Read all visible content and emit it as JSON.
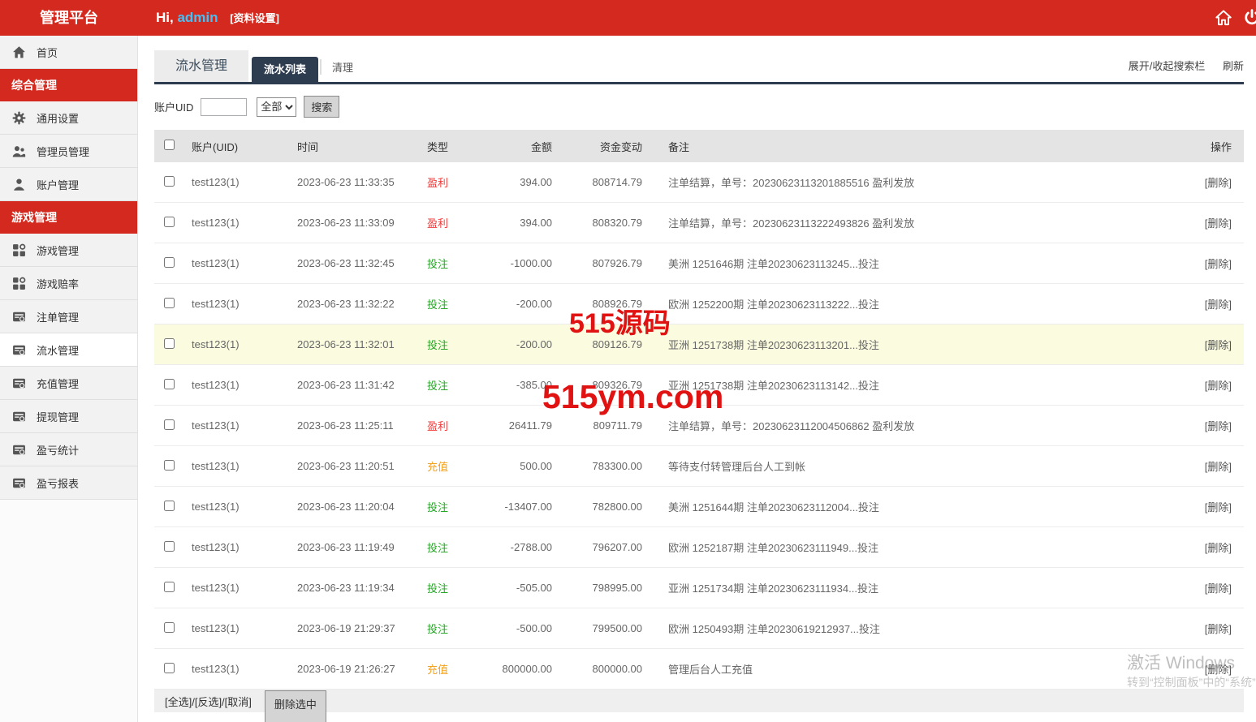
{
  "topbar": {
    "brand": "管理平台",
    "greeting_hi": "Hi,",
    "greeting_name": "admin",
    "profile_link": "[资料设置]"
  },
  "sidebar": {
    "items": [
      {
        "type": "item",
        "label": "首页",
        "icon": "home-icon",
        "active": false
      },
      {
        "type": "section",
        "label": "综合管理"
      },
      {
        "type": "item",
        "label": "通用设置",
        "icon": "gear-icon",
        "active": false
      },
      {
        "type": "item",
        "label": "管理员管理",
        "icon": "admins-icon",
        "active": false
      },
      {
        "type": "item",
        "label": "账户管理",
        "icon": "user-icon",
        "active": false
      },
      {
        "type": "section",
        "label": "游戏管理"
      },
      {
        "type": "item",
        "label": "游戏管理",
        "icon": "grid-icon",
        "active": false
      },
      {
        "type": "item",
        "label": "游戏赔率",
        "icon": "grid-icon",
        "active": false
      },
      {
        "type": "item",
        "label": "注单管理",
        "icon": "card-icon",
        "active": false
      },
      {
        "type": "item",
        "label": "流水管理",
        "icon": "card-icon",
        "active": true
      },
      {
        "type": "item",
        "label": "充值管理",
        "icon": "card-icon",
        "active": false
      },
      {
        "type": "item",
        "label": "提现管理",
        "icon": "card-icon",
        "active": false
      },
      {
        "type": "item",
        "label": "盈亏统计",
        "icon": "card-icon",
        "active": false
      },
      {
        "type": "item",
        "label": "盈亏报表",
        "icon": "card-icon",
        "active": false
      }
    ]
  },
  "tabs": {
    "page_tab": "流水管理",
    "sub_tab_active": "流水列表",
    "sub_tab_2": "清理",
    "toggle_search": "展开/收起搜索栏",
    "refresh": "刷新"
  },
  "search": {
    "uid_label": "账户UID",
    "uid_value": "",
    "select_value": "全部",
    "search_button": "搜索"
  },
  "table": {
    "headers": {
      "account": "账户(UID)",
      "time": "时间",
      "type": "类型",
      "amount": "金额",
      "balance": "资金变动",
      "remark": "备注",
      "action": "操作"
    },
    "rows": [
      {
        "uid": "test123(1)",
        "time": "2023-06-23 11:33:35",
        "type": "盈利",
        "type_kind": "profit",
        "amount": "394.00",
        "balance": "808714.79",
        "remark": "注单结算，单号：20230623113201885516 盈利发放",
        "action": "[删除]",
        "highlight": false
      },
      {
        "uid": "test123(1)",
        "time": "2023-06-23 11:33:09",
        "type": "盈利",
        "type_kind": "profit",
        "amount": "394.00",
        "balance": "808320.79",
        "remark": "注单结算，单号：20230623113222493826 盈利发放",
        "action": "[删除]",
        "highlight": false
      },
      {
        "uid": "test123(1)",
        "time": "2023-06-23 11:32:45",
        "type": "投注",
        "type_kind": "bet",
        "amount": "-1000.00",
        "balance": "807926.79",
        "remark": "美洲 1251646期 注单20230623113245...投注",
        "action": "[删除]",
        "highlight": false
      },
      {
        "uid": "test123(1)",
        "time": "2023-06-23 11:32:22",
        "type": "投注",
        "type_kind": "bet",
        "amount": "-200.00",
        "balance": "808926.79",
        "remark": "欧洲 1252200期 注单20230623113222...投注",
        "action": "[删除]",
        "highlight": false
      },
      {
        "uid": "test123(1)",
        "time": "2023-06-23 11:32:01",
        "type": "投注",
        "type_kind": "bet",
        "amount": "-200.00",
        "balance": "809126.79",
        "remark": "亚洲 1251738期 注单20230623113201...投注",
        "action": "[删除]",
        "highlight": true
      },
      {
        "uid": "test123(1)",
        "time": "2023-06-23 11:31:42",
        "type": "投注",
        "type_kind": "bet",
        "amount": "-385.00",
        "balance": "809326.79",
        "remark": "亚洲 1251738期 注单20230623113142...投注",
        "action": "[删除]",
        "highlight": false
      },
      {
        "uid": "test123(1)",
        "time": "2023-06-23 11:25:11",
        "type": "盈利",
        "type_kind": "profit",
        "amount": "26411.79",
        "balance": "809711.79",
        "remark": "注单结算，单号：20230623112004506862 盈利发放",
        "action": "[删除]",
        "highlight": false
      },
      {
        "uid": "test123(1)",
        "time": "2023-06-23 11:20:51",
        "type": "充值",
        "type_kind": "recharge",
        "amount": "500.00",
        "balance": "783300.00",
        "remark": "等待支付转管理后台人工到帐",
        "action": "[删除]",
        "highlight": false
      },
      {
        "uid": "test123(1)",
        "time": "2023-06-23 11:20:04",
        "type": "投注",
        "type_kind": "bet",
        "amount": "-13407.00",
        "balance": "782800.00",
        "remark": "美洲 1251644期 注单20230623112004...投注",
        "action": "[删除]",
        "highlight": false
      },
      {
        "uid": "test123(1)",
        "time": "2023-06-23 11:19:49",
        "type": "投注",
        "type_kind": "bet",
        "amount": "-2788.00",
        "balance": "796207.00",
        "remark": "欧洲 1252187期 注单20230623111949...投注",
        "action": "[删除]",
        "highlight": false
      },
      {
        "uid": "test123(1)",
        "time": "2023-06-23 11:19:34",
        "type": "投注",
        "type_kind": "bet",
        "amount": "-505.00",
        "balance": "798995.00",
        "remark": "亚洲 1251734期 注单20230623111934...投注",
        "action": "[删除]",
        "highlight": false
      },
      {
        "uid": "test123(1)",
        "time": "2023-06-19 21:29:37",
        "type": "投注",
        "type_kind": "bet",
        "amount": "-500.00",
        "balance": "799500.00",
        "remark": "欧洲 1250493期 注单20230619212937...投注",
        "action": "[删除]",
        "highlight": false
      },
      {
        "uid": "test123(1)",
        "time": "2023-06-19 21:26:27",
        "type": "充值",
        "type_kind": "recharge",
        "amount": "800000.00",
        "balance": "800000.00",
        "remark": "管理后台人工充值",
        "action": "[删除]",
        "highlight": false
      }
    ]
  },
  "footer": {
    "select_links": "[全选]/[反选]/[取消]",
    "delete_button": "删除选中"
  },
  "watermarks": {
    "site_name": "515源码",
    "site_url": "515ym.com",
    "windows_line1": "激活 Windows",
    "windows_line2": "转到“控制面板”中的“系统”"
  },
  "colors": {
    "primary_red": "#d4291e",
    "navy": "#2e3c50",
    "admin_name_blue": "#45c0f5",
    "type_profit": "#f03c3c",
    "type_bet": "#22a822",
    "type_recharge": "#f5a21c",
    "watermark_red": "#e11212",
    "highlight_row": "#fbfbe0"
  }
}
